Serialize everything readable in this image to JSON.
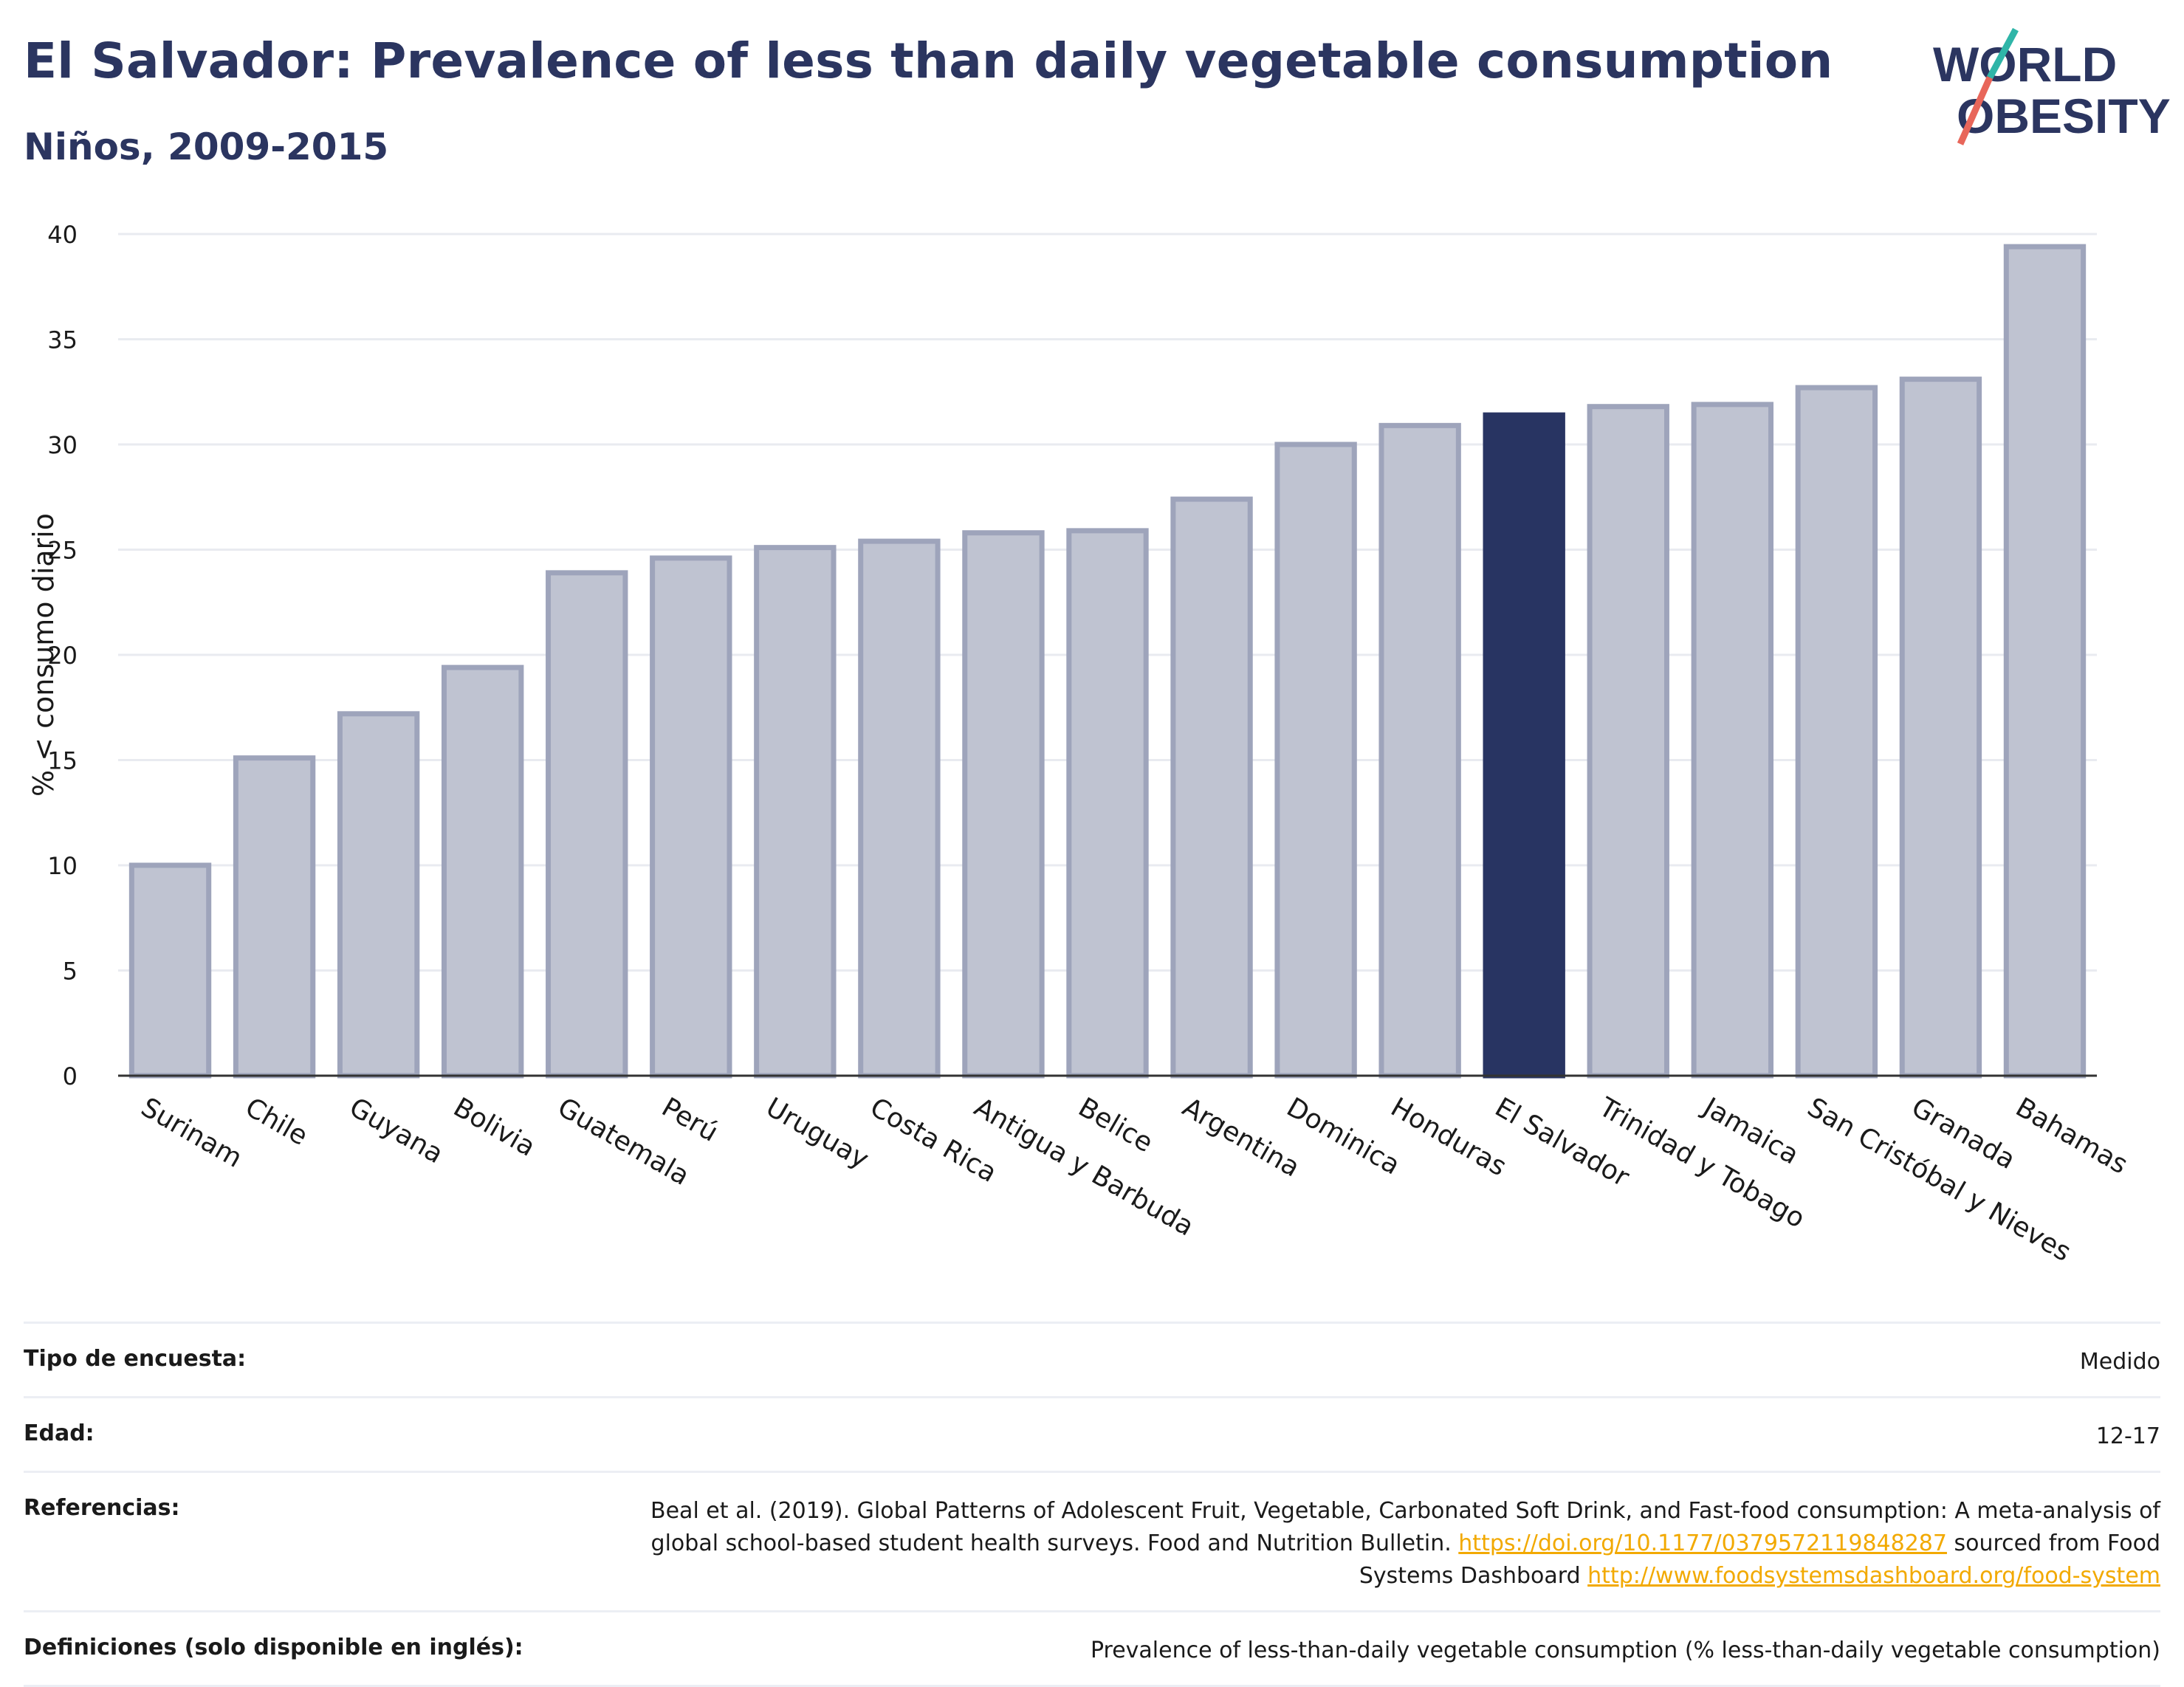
{
  "header": {
    "title": "El Salvador: Prevalence of less than daily vegetable consumption",
    "subtitle": "Niños, 2009-2015"
  },
  "logo": {
    "line1": "WORLD",
    "line2": "OBESITY"
  },
  "colors": {
    "bar": "#bfc3d1",
    "bar_border": "#9ea4bb",
    "highlight": "#283462",
    "title": "#2b3560",
    "link": "#f2a900"
  },
  "chart_data": {
    "type": "bar",
    "categories": [
      "Surinam",
      "Chile",
      "Guyana",
      "Bolivia",
      "Guatemala",
      "Perú",
      "Uruguay",
      "Costa Rica",
      "Antigua y Barbuda",
      "Belice",
      "Argentina",
      "Dominica",
      "Honduras",
      "El Salvador",
      "Trinidad y Tobago",
      "Jamaica",
      "San Cristóbal y Nieves",
      "Granada",
      "Bahamas"
    ],
    "values": [
      10.0,
      15.1,
      17.2,
      19.4,
      23.9,
      24.6,
      25.1,
      25.4,
      25.8,
      25.9,
      27.4,
      30.0,
      30.9,
      31.4,
      31.8,
      31.9,
      32.7,
      33.1,
      39.4
    ],
    "highlight": "El Salvador",
    "ylabel": "% < consumo diario",
    "xlabel": "",
    "ylim": [
      0,
      40
    ],
    "yticks": [
      "0",
      "5",
      "10",
      "15",
      "20",
      "25",
      "30",
      "35",
      "40"
    ],
    "grid": true
  },
  "table": {
    "survey_type": {
      "label": "Tipo de encuesta:",
      "value": "Medido"
    },
    "age": {
      "label": "Edad:",
      "value": "12-17"
    },
    "references": {
      "label": "Referencias:",
      "text1": "Beal et al. (2019). Global Patterns of Adolescent Fruit, Vegetable, Carbonated Soft Drink, and Fast-food consumption: A meta-analysis of global school-based student health surveys. Food and Nutrition Bulletin. ",
      "link1": "https://doi.org/10.1177/0379572119848287",
      "text2": " sourced from Food Systems Dashboard ",
      "link2": "http://www.foodsystemsdashboard.org/food-system"
    },
    "definitions": {
      "label": "Definiciones (solo disponible en inglés):",
      "value": "Prevalence of less-than-daily vegetable consumption (% less-than-daily vegetable consumption)"
    }
  }
}
